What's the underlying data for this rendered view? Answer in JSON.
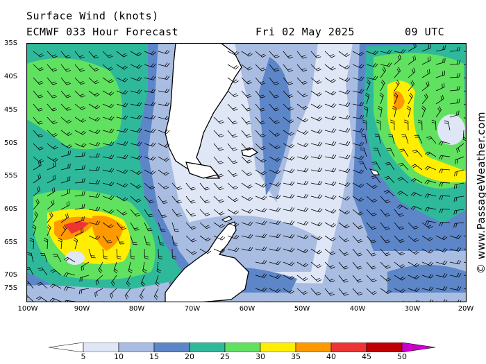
{
  "header": {
    "title": "Surface Wind (knots)",
    "model": "ECMWF 033 Hour Forecast",
    "date": "Fri 02 May 2025",
    "time": "09 UTC"
  },
  "watermark": "© www.PassageWeather.com",
  "axes": {
    "lat_labels": [
      "35S",
      "40S",
      "45S",
      "50S",
      "55S",
      "60S",
      "65S",
      "70S",
      "75S"
    ],
    "lon_labels": [
      "100W",
      "90W",
      "80W",
      "70W",
      "60W",
      "50W",
      "40W",
      "30W",
      "20W"
    ]
  },
  "colorbar": {
    "labels": [
      "5",
      "10",
      "15",
      "20",
      "25",
      "30",
      "35",
      "40",
      "45",
      "50"
    ],
    "colors": [
      "#ffffff",
      "#dfe6f5",
      "#a9bde2",
      "#5c86c8",
      "#2fb99b",
      "#61e160",
      "#ffee00",
      "#ff9900",
      "#ee3333",
      "#c00000",
      "#cc00cc"
    ]
  },
  "colors": {
    "ocean_light": "#dfe6f5",
    "land": "#ffffff",
    "coast": "#000000"
  }
}
